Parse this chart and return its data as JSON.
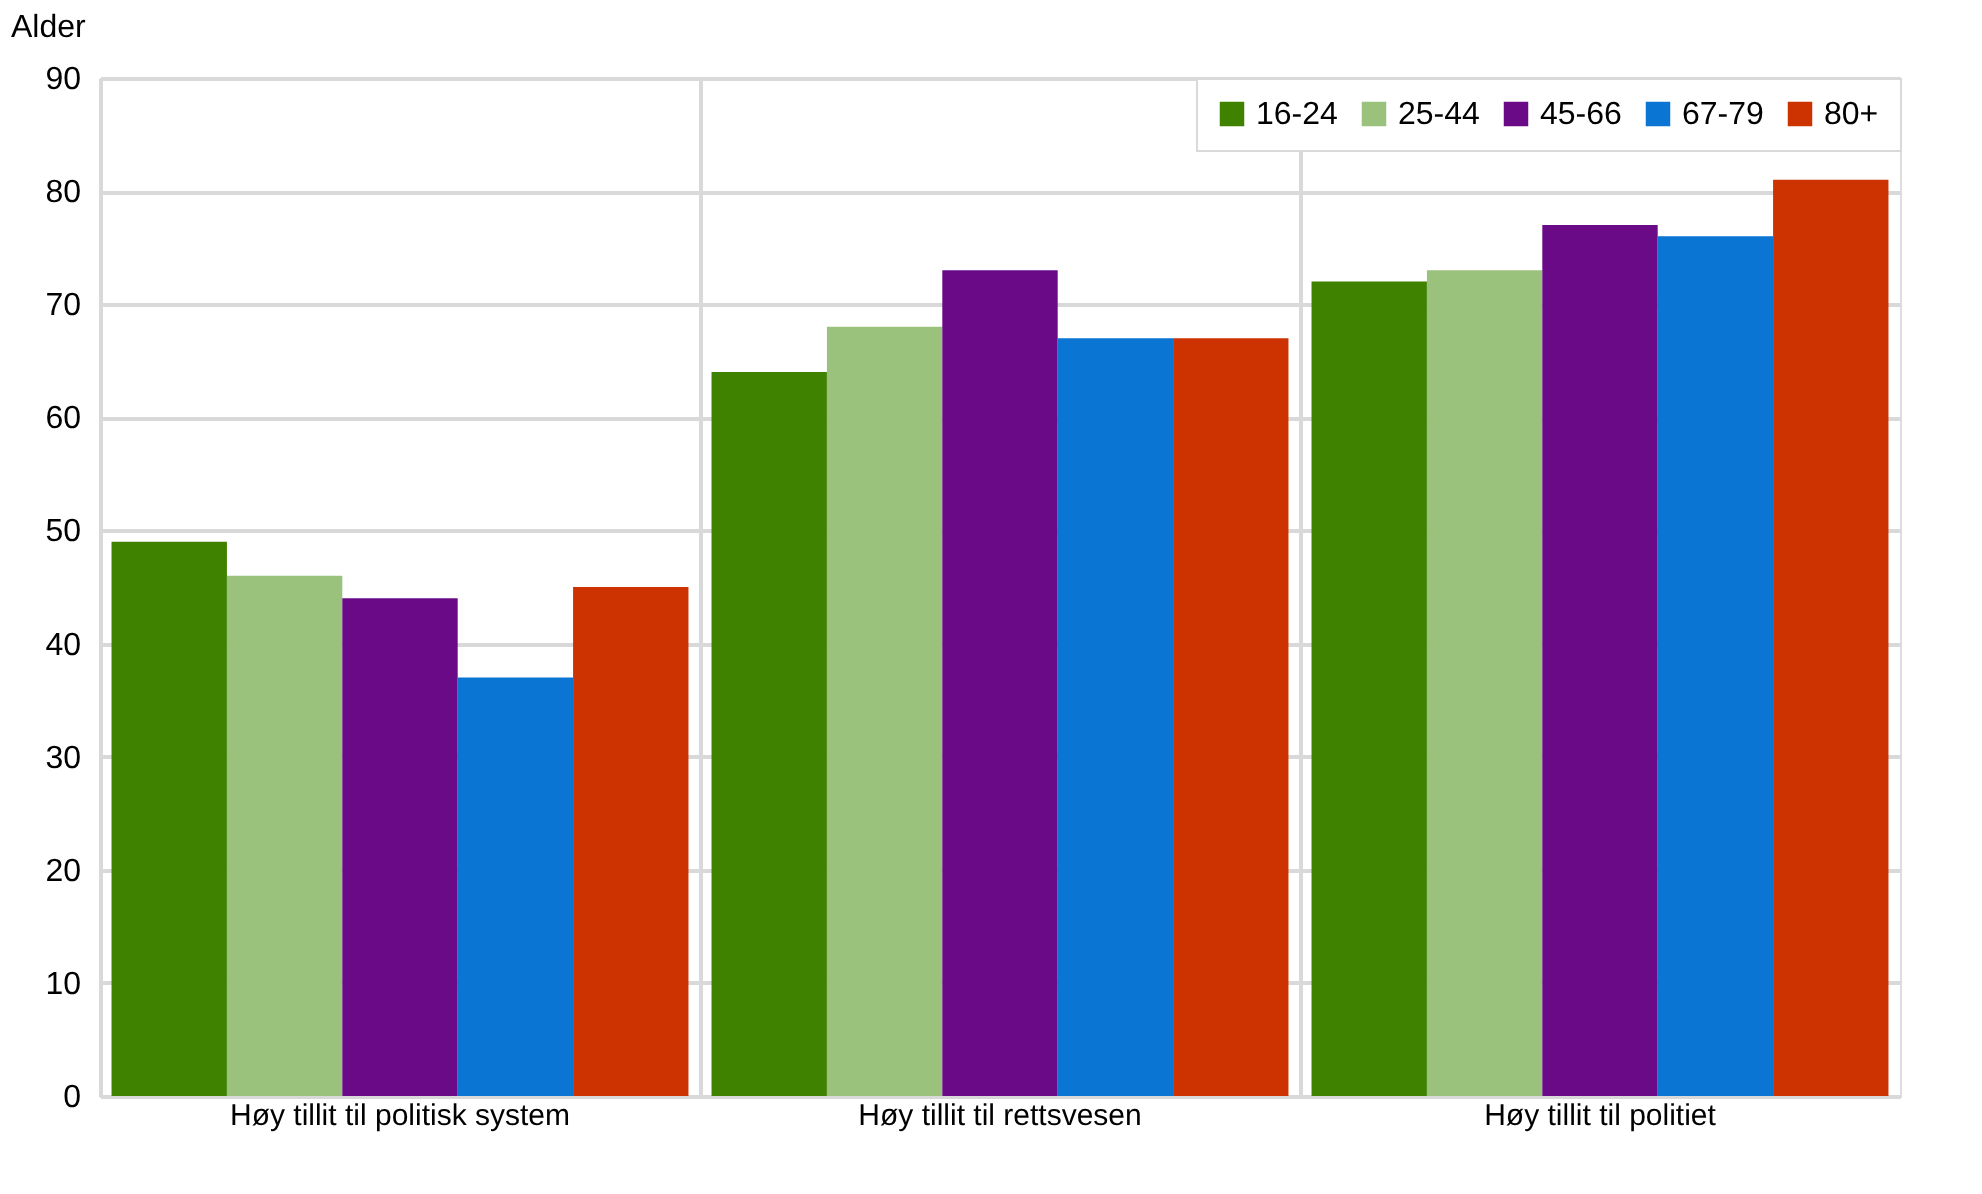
{
  "chart_data": {
    "type": "bar",
    "ylabel": "Alder",
    "categories": [
      "Høy tillit til politisk system",
      "Høy tillit til rettsvesen",
      "Høy tillit til politiet"
    ],
    "series": [
      {
        "name": "16-24",
        "color": "#3f8200",
        "values": [
          49,
          64,
          72
        ]
      },
      {
        "name": "25-44",
        "color": "#9bc27c",
        "values": [
          46,
          68,
          73
        ]
      },
      {
        "name": "45-66",
        "color": "#6a0a87",
        "values": [
          44,
          73,
          77
        ]
      },
      {
        "name": "67-79",
        "color": "#0a75d2",
        "values": [
          37,
          67,
          76
        ]
      },
      {
        "name": "80+",
        "color": "#cc3300",
        "values": [
          45,
          67,
          81
        ]
      }
    ],
    "ylim": [
      0,
      90
    ],
    "yticks": [
      0,
      10,
      20,
      30,
      40,
      50,
      60,
      70,
      80,
      90
    ],
    "grid": true,
    "legend": "top right"
  }
}
